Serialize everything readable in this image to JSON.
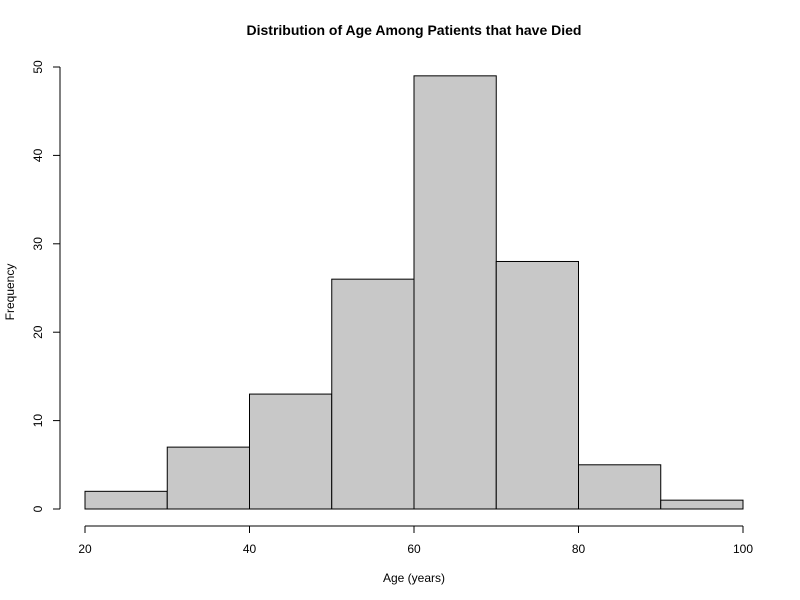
{
  "chart_data": {
    "type": "bar",
    "title": "Distribution of Age Among Patients that have Died",
    "xlabel": "Age (years)",
    "ylabel": "Frequency",
    "bin_edges": [
      20,
      30,
      40,
      50,
      60,
      70,
      80,
      90,
      100
    ],
    "values": [
      2,
      7,
      13,
      26,
      49,
      28,
      5,
      1
    ],
    "xlim": [
      20,
      100
    ],
    "ylim": [
      0,
      50
    ],
    "x_ticks": [
      "20",
      "40",
      "60",
      "80",
      "100"
    ],
    "y_ticks": [
      "0",
      "10",
      "20",
      "30",
      "40",
      "50"
    ],
    "grid": false,
    "bar_color": "#c8c8c8",
    "edge_color": "#000000"
  }
}
